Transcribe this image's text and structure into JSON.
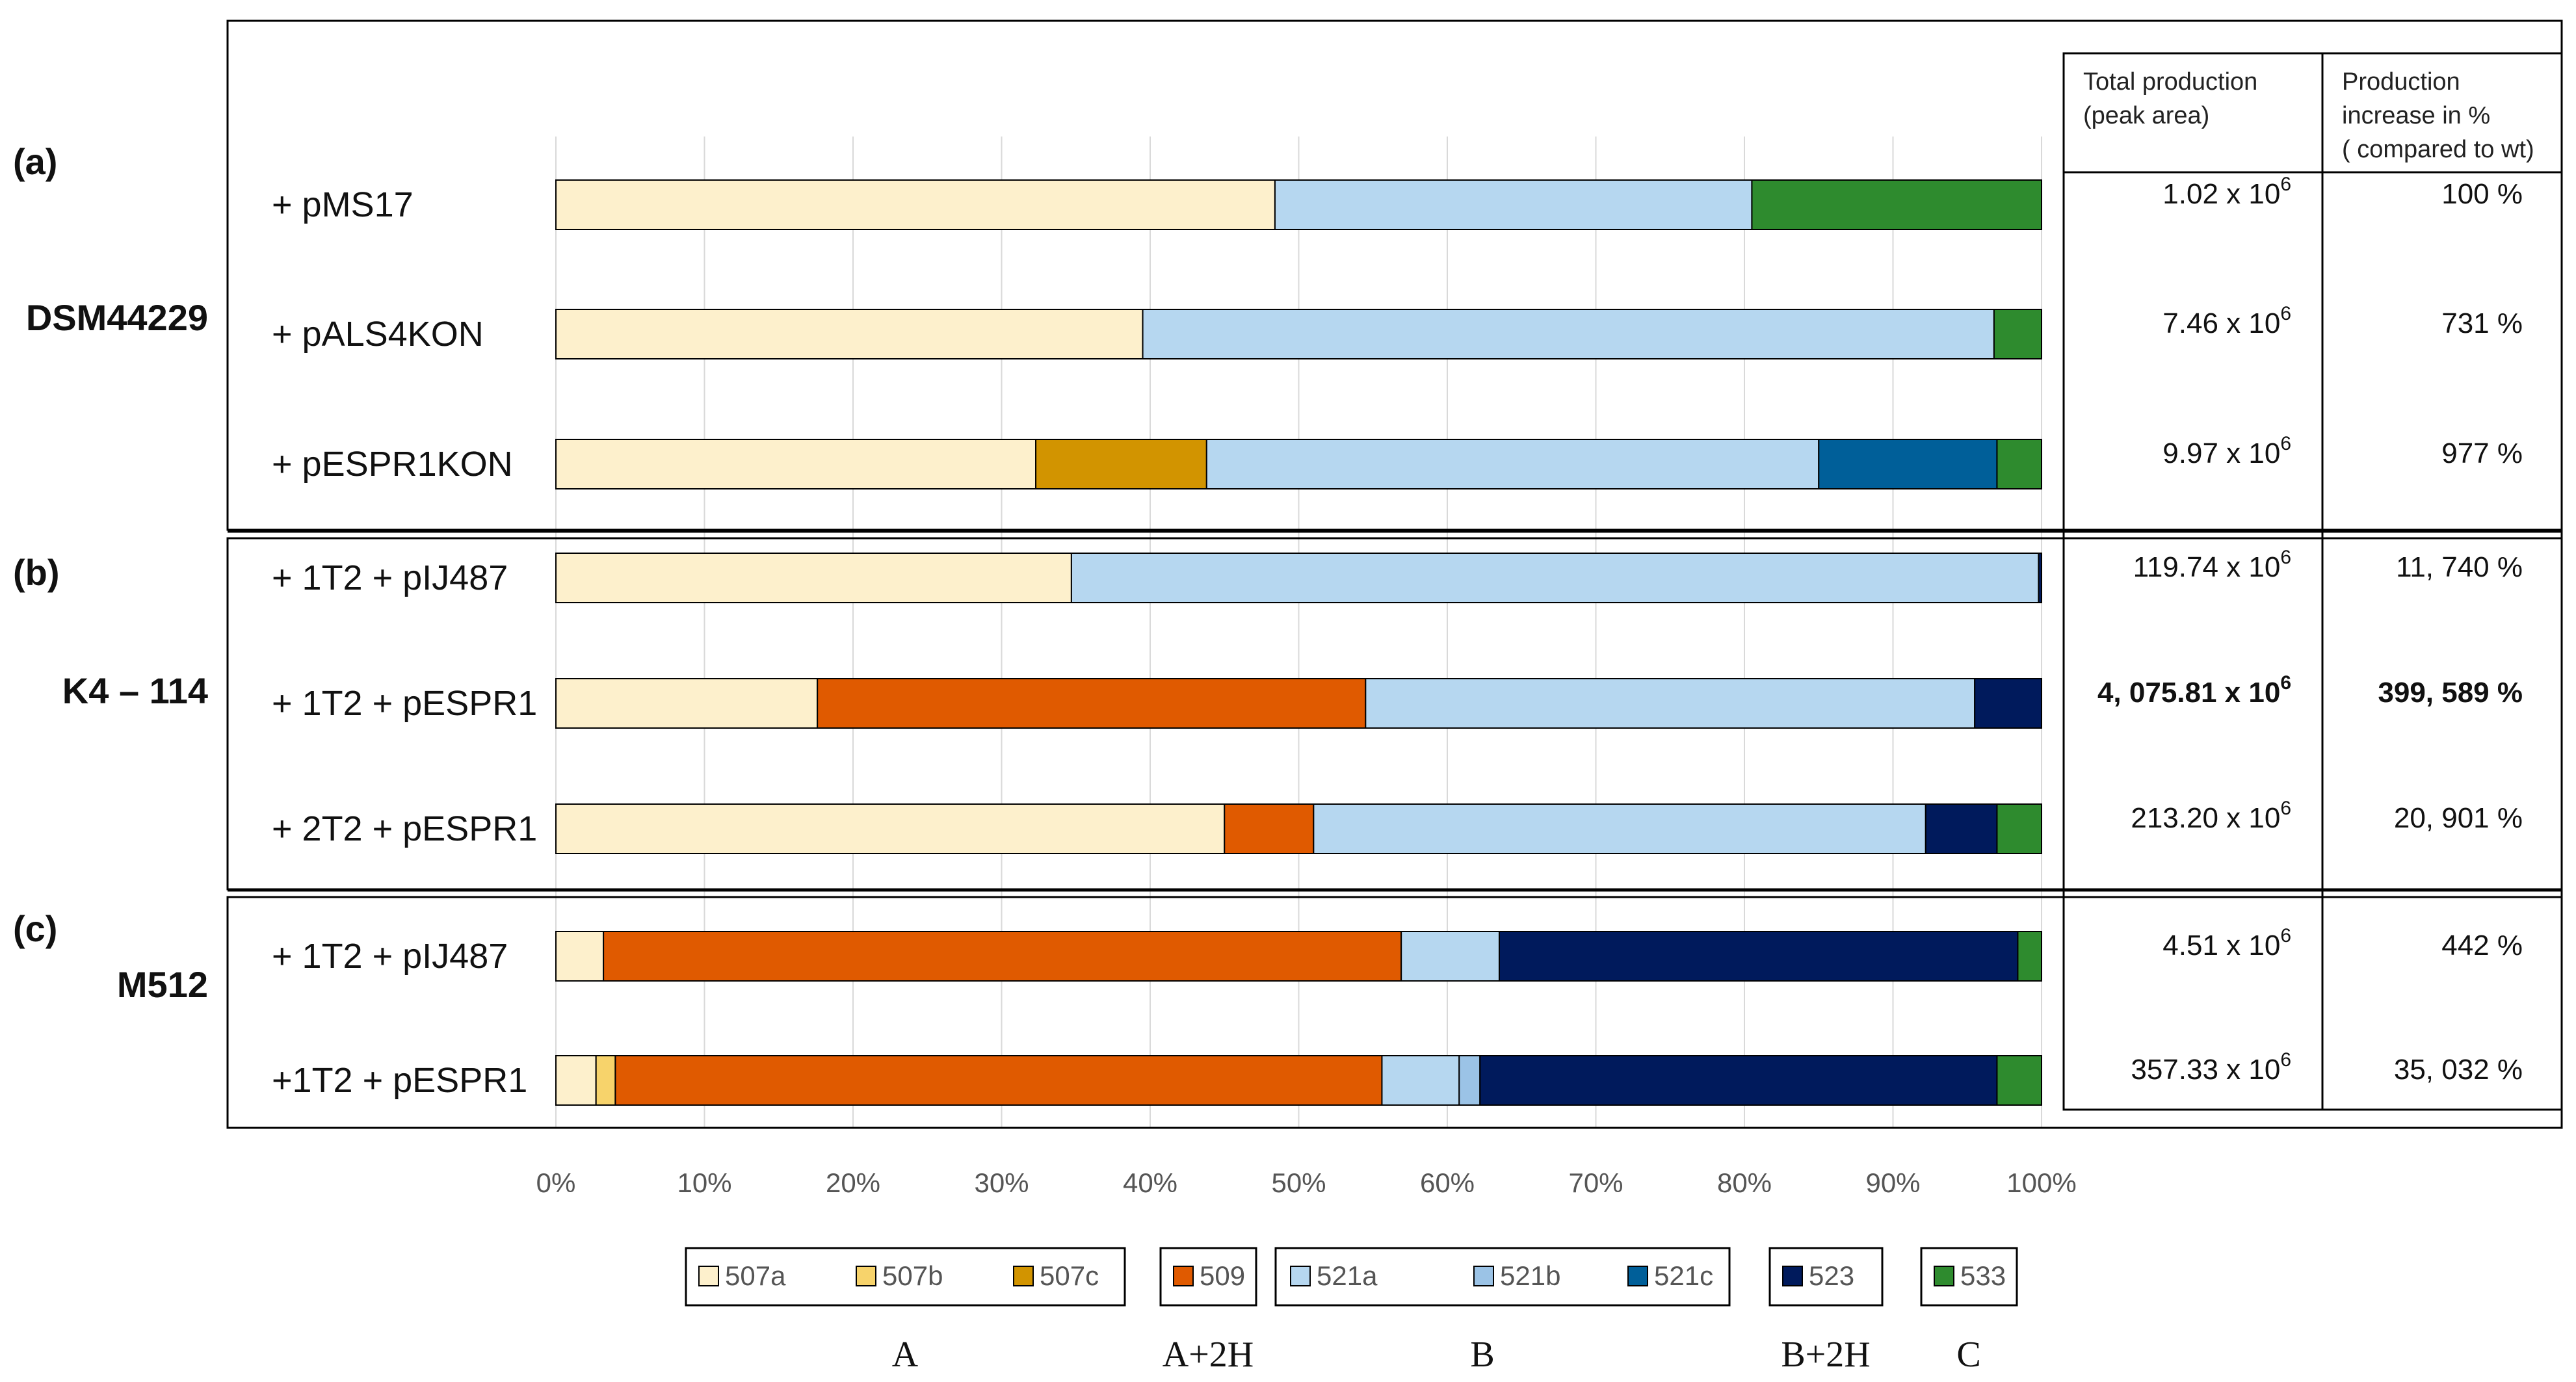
{
  "chart_data": {
    "type": "bar",
    "orientation": "horizontal",
    "stacked": "percent",
    "xlim": [
      0,
      100
    ],
    "x_ticks": [
      "0%",
      "10%",
      "20%",
      "30%",
      "40%",
      "50%",
      "60%",
      "70%",
      "80%",
      "90%",
      "100%"
    ],
    "colors": {
      "507a": "#fdf0cc",
      "507b": "#f7d36b",
      "507c": "#d29400",
      "509": "#e05a00",
      "521a": "#b6d7f0",
      "521b": "#9bc3e6",
      "521c": "#005f99",
      "523": "#001a5c",
      "533": "#2e8b2e"
    },
    "groups": [
      {
        "tag": "(a)",
        "strain": "DSM44229",
        "rows": [
          {
            "label": "+ pMS17",
            "total": "1.02 x 10",
            "increase": "100 %",
            "bold": false,
            "segments": [
              {
                "s": "507a",
                "v": 48.4
              },
              {
                "s": "521a",
                "v": 32.1
              },
              {
                "s": "533",
                "v": 19.5
              }
            ]
          },
          {
            "label": "+ pALS4KON",
            "total": "7.46 x 10",
            "increase": "731 %",
            "bold": false,
            "segments": [
              {
                "s": "507a",
                "v": 39.5
              },
              {
                "s": "521a",
                "v": 57.3
              },
              {
                "s": "533",
                "v": 3.2
              }
            ]
          },
          {
            "label": "+ pESPR1KON",
            "total": "9.97 x 10",
            "increase": "977 %",
            "bold": false,
            "segments": [
              {
                "s": "507a",
                "v": 32.3
              },
              {
                "s": "507c",
                "v": 11.5
              },
              {
                "s": "521a",
                "v": 41.2
              },
              {
                "s": "521c",
                "v": 12.0
              },
              {
                "s": "533",
                "v": 3.0
              }
            ]
          }
        ]
      },
      {
        "tag": "(b)",
        "strain": "K4 – 114",
        "rows": [
          {
            "label": "+ 1T2 + pIJ487",
            "total": "119.74 x 10",
            "increase": "11, 740 %",
            "bold": false,
            "segments": [
              {
                "s": "507a",
                "v": 34.7
              },
              {
                "s": "521a",
                "v": 65.1
              },
              {
                "s": "523",
                "v": 0.2
              }
            ]
          },
          {
            "label": "+ 1T2 + pESPR1",
            "total": "4, 075.81 x 10",
            "increase": "399, 589 %",
            "bold": true,
            "segments": [
              {
                "s": "507a",
                "v": 17.6
              },
              {
                "s": "509",
                "v": 36.9
              },
              {
                "s": "521a",
                "v": 41.0
              },
              {
                "s": "523",
                "v": 4.5
              }
            ]
          },
          {
            "label": "+ 2T2 + pESPR1",
            "total": "213.20 x 10",
            "increase": "20, 901 %",
            "bold": false,
            "segments": [
              {
                "s": "507a",
                "v": 45.0
              },
              {
                "s": "509",
                "v": 6.0
              },
              {
                "s": "521a",
                "v": 41.2
              },
              {
                "s": "523",
                "v": 4.8
              },
              {
                "s": "533",
                "v": 3.0
              }
            ]
          }
        ]
      },
      {
        "tag": "(c)",
        "strain": "M512",
        "rows": [
          {
            "label": "+ 1T2 + pIJ487",
            "total": "4.51 x 10",
            "increase": "442 %",
            "bold": false,
            "segments": [
              {
                "s": "507a",
                "v": 3.2
              },
              {
                "s": "509",
                "v": 53.7
              },
              {
                "s": "521a",
                "v": 6.6
              },
              {
                "s": "523",
                "v": 34.9
              },
              {
                "s": "533",
                "v": 1.6
              }
            ]
          },
          {
            "label": "+1T2 + pESPR1",
            "total": "357.33 x 10",
            "increase": "35, 032 %",
            "bold": false,
            "segments": [
              {
                "s": "507a",
                "v": 2.7
              },
              {
                "s": "507b",
                "v": 1.3
              },
              {
                "s": "509",
                "v": 51.6
              },
              {
                "s": "521a",
                "v": 5.2
              },
              {
                "s": "521b",
                "v": 1.4
              },
              {
                "s": "523",
                "v": 34.8
              },
              {
                "s": "533",
                "v": 3.0
              }
            ]
          }
        ]
      }
    ],
    "table": {
      "header_total": [
        "Total production",
        "(peak area)"
      ],
      "header_increase": [
        "Production",
        "increase  in %",
        "( compared to wt)"
      ],
      "exponent": "6"
    },
    "legend": [
      {
        "classes": "A",
        "items": [
          "507a",
          "507b",
          "507c"
        ]
      },
      {
        "classes": "A+2H",
        "items": [
          "509"
        ]
      },
      {
        "classes": "B",
        "items": [
          "521a",
          "521b",
          "521c"
        ]
      },
      {
        "classes": "B+2H",
        "items": [
          "523"
        ]
      },
      {
        "classes": "C",
        "items": [
          "533"
        ]
      }
    ]
  }
}
